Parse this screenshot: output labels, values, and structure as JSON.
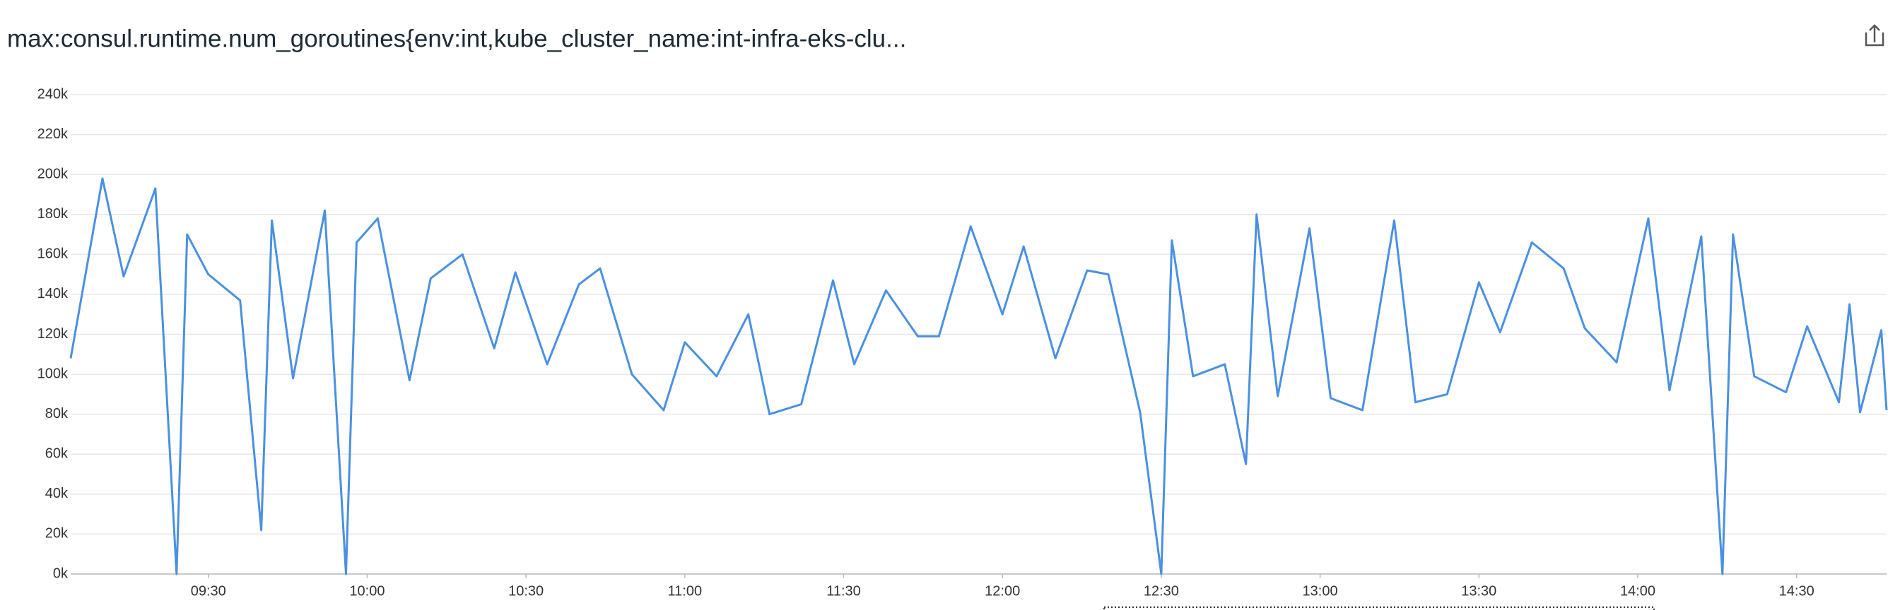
{
  "chart_data": {
    "type": "line",
    "title": "max:consul.runtime.num_goroutines{env:int,kube_cluster_name:int-infra-eks-clu...",
    "x": [
      "09:04",
      "09:10",
      "09:14",
      "09:20",
      "09:24",
      "09:26",
      "09:30",
      "09:36",
      "09:40",
      "09:42",
      "09:46",
      "09:52",
      "09:56",
      "09:58",
      "10:02",
      "10:08",
      "10:12",
      "10:18",
      "10:24",
      "10:28",
      "10:34",
      "10:40",
      "10:44",
      "10:50",
      "10:56",
      "11:00",
      "11:06",
      "11:12",
      "11:16",
      "11:22",
      "11:28",
      "11:32",
      "11:38",
      "11:44",
      "11:48",
      "11:54",
      "12:00",
      "12:04",
      "12:10",
      "12:16",
      "12:20",
      "12:26",
      "12:30",
      "12:32",
      "12:36",
      "12:42",
      "12:46",
      "12:48",
      "12:52",
      "12:58",
      "13:02",
      "13:08",
      "13:14",
      "13:18",
      "13:24",
      "13:30",
      "13:34",
      "13:40",
      "13:46",
      "13:50",
      "13:56",
      "14:02",
      "14:06",
      "14:12",
      "14:16",
      "14:18",
      "14:22",
      "14:28",
      "14:32",
      "14:38",
      "14:40",
      "14:42",
      "14:46",
      "14:47"
    ],
    "series": [
      {
        "name": "max:consul.runtime.num_goroutines",
        "color": "#4a90e2",
        "values": [
          108000,
          198000,
          149000,
          193000,
          0,
          170000,
          150000,
          137000,
          22000,
          177000,
          98000,
          182000,
          0,
          166000,
          178000,
          97000,
          148000,
          160000,
          113000,
          151000,
          105000,
          145000,
          153000,
          100000,
          82000,
          116000,
          99000,
          130000,
          80000,
          85000,
          147000,
          105000,
          142000,
          119000,
          119000,
          174000,
          130000,
          164000,
          108000,
          152000,
          150000,
          81000,
          0,
          167000,
          99000,
          105000,
          55000,
          180000,
          89000,
          173000,
          88000,
          82000,
          177000,
          86000,
          90000,
          146000,
          121000,
          166000,
          153000,
          123000,
          106000,
          178000,
          92000,
          169000,
          0,
          170000,
          99000,
          91000,
          124000,
          86000,
          135000,
          81000,
          122000,
          82000
        ]
      }
    ],
    "xlim": [
      "09:04",
      "14:47"
    ],
    "xticks": [
      "09:30",
      "10:00",
      "10:30",
      "11:00",
      "11:30",
      "12:00",
      "12:30",
      "13:00",
      "13:30",
      "14:00",
      "14:30"
    ],
    "ylim": [
      0,
      240000
    ],
    "yticks": [
      {
        "value": 0,
        "label": "0k"
      },
      {
        "value": 20000,
        "label": "20k"
      },
      {
        "value": 40000,
        "label": "40k"
      },
      {
        "value": 60000,
        "label": "60k"
      },
      {
        "value": 80000,
        "label": "80k"
      },
      {
        "value": 100000,
        "label": "100k"
      },
      {
        "value": 120000,
        "label": "120k"
      },
      {
        "value": 140000,
        "label": "140k"
      },
      {
        "value": 160000,
        "label": "160k"
      },
      {
        "value": 180000,
        "label": "180k"
      },
      {
        "value": 200000,
        "label": "200k"
      },
      {
        "value": 220000,
        "label": "220k"
      },
      {
        "value": 240000,
        "label": "240k"
      }
    ],
    "grid": true
  }
}
